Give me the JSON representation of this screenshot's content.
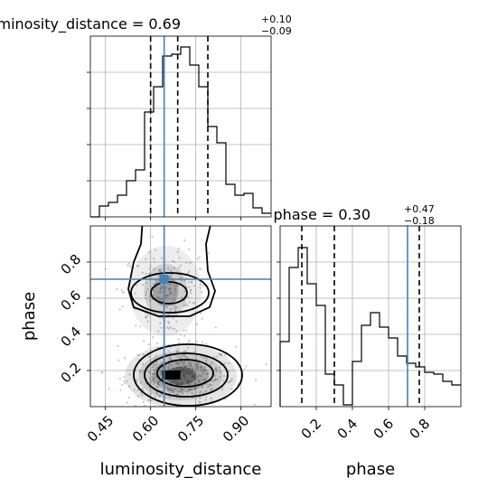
{
  "chart_data": {
    "type": "corner",
    "parameters": [
      "luminosity_distance",
      "phase"
    ],
    "truths": {
      "luminosity_distance": 0.645,
      "phase": 0.705
    },
    "marginals": [
      {
        "parameter": "luminosity_distance",
        "title_name": "luminosity_distance",
        "median": "0.69",
        "upper_err": "+0.10",
        "lower_err": "−0.09",
        "quantiles": [
          0.6,
          0.69,
          0.79
        ],
        "xlim": [
          0.4,
          1.0
        ],
        "bin_edges": [
          0.4,
          0.43,
          0.46,
          0.49,
          0.52,
          0.55,
          0.58,
          0.61,
          0.64,
          0.67,
          0.7,
          0.73,
          0.76,
          0.79,
          0.82,
          0.85,
          0.88,
          0.91,
          0.94,
          0.97,
          1.0
        ],
        "counts": [
          0.0,
          0.06,
          0.08,
          0.12,
          0.2,
          0.26,
          0.58,
          0.72,
          0.89,
          0.9,
          0.94,
          0.84,
          0.72,
          0.5,
          0.41,
          0.18,
          0.12,
          0.13,
          0.05,
          0.02
        ]
      },
      {
        "parameter": "phase",
        "title_name": "phase",
        "median": "0.30",
        "upper_err": "+0.47",
        "lower_err": "−0.18",
        "quantiles": [
          0.12,
          0.3,
          0.77
        ],
        "xlim": [
          0.0,
          1.0
        ],
        "bin_edges": [
          0.0,
          0.05,
          0.1,
          0.15,
          0.2,
          0.25,
          0.3,
          0.35,
          0.4,
          0.45,
          0.5,
          0.55,
          0.6,
          0.65,
          0.7,
          0.75,
          0.8,
          0.85,
          0.9,
          0.95,
          1.0
        ],
        "counts": [
          0.36,
          0.77,
          0.88,
          0.68,
          0.56,
          0.18,
          0.12,
          0.01,
          0.25,
          0.45,
          0.52,
          0.44,
          0.38,
          0.28,
          0.24,
          0.22,
          0.19,
          0.18,
          0.14,
          0.12
        ]
      }
    ],
    "joint": {
      "x": "luminosity_distance",
      "y": "phase",
      "xlim": [
        0.4,
        1.0
      ],
      "ylim": [
        0.0,
        1.0
      ],
      "modes": [
        {
          "center": [
            0.7,
            0.17
          ],
          "description": "dominant mode near phase 0.17"
        },
        {
          "center": [
            0.65,
            0.64
          ],
          "description": "secondary mode near phase 0.64"
        }
      ]
    },
    "xticks_luminosity_distance": [
      "0.45",
      "0.60",
      "0.75",
      "0.90"
    ],
    "yticks_phase": [
      "0.2",
      "0.4",
      "0.6",
      "0.8"
    ],
    "xticks_phase": [
      "0.2",
      "0.4",
      "0.6",
      "0.8"
    ],
    "xlabel_left": "luminosity_distance",
    "xlabel_right": "phase",
    "ylabel": "phase",
    "colors": {
      "truth": "#4682b4",
      "hist": "#000000",
      "quantile": "#000000",
      "grid": "#b0b0b0"
    }
  }
}
